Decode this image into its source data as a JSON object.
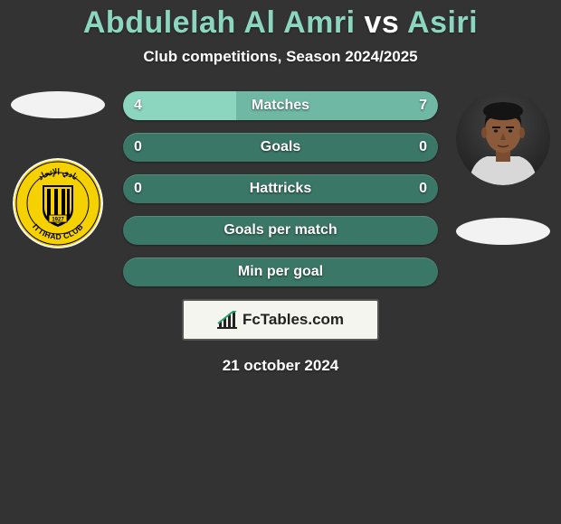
{
  "title": {
    "player1": "Abdulelah Al Amri",
    "vs": "vs",
    "player2": "Asiri",
    "player1_color": "#8cd6c0",
    "player2_color": "#8cd6c0",
    "vs_color": "#ffffff"
  },
  "subtitle": "Club competitions, Season 2024/2025",
  "background_color": "#333333",
  "left": {
    "player_oval_color": "#f2f2f2",
    "club": {
      "name": "Ittihad Club",
      "primary": "#f6d100",
      "secondary": "#000000",
      "border": "#ffffff",
      "text_top": "نادي الإتحاد",
      "text_bottom": "ITTIHAD CLUB",
      "founded": "1927"
    }
  },
  "right": {
    "player_oval_color": "#f2f2f2",
    "photo": {
      "bg": "#1a1a1a",
      "skin": "#8a5a3a",
      "hair": "#1a1a1a",
      "shirt": "#d8d8d8"
    }
  },
  "stats": {
    "track_color": "#3b7766",
    "fill_left_color": "#8cd6c0",
    "fill_right_color": "#6fb8a3",
    "text_color": "#ffffff",
    "rows": [
      {
        "label": "Matches",
        "left": "4",
        "right": "7",
        "left_pct": 36,
        "right_pct": 64
      },
      {
        "label": "Goals",
        "left": "0",
        "right": "0",
        "left_pct": 0,
        "right_pct": 0
      },
      {
        "label": "Hattricks",
        "left": "0",
        "right": "0",
        "left_pct": 0,
        "right_pct": 0
      },
      {
        "label": "Goals per match",
        "left": "",
        "right": "",
        "left_pct": 0,
        "right_pct": 0
      },
      {
        "label": "Min per goal",
        "left": "",
        "right": "",
        "left_pct": 0,
        "right_pct": 0
      }
    ]
  },
  "footer": {
    "site": "FcTables.com",
    "badge_bg": "#f5f5f0",
    "badge_border": "#555555",
    "badge_text_color": "#222222",
    "date": "21 october 2024"
  }
}
